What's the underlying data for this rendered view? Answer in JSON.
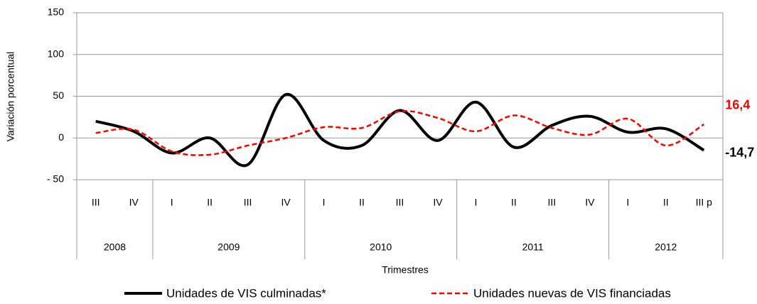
{
  "chart_data": {
    "type": "line",
    "y_label": "Variación  porcentual",
    "x_label": "Trimestres",
    "groups": [
      {
        "label": "2008",
        "categories": [
          "III",
          "IV"
        ]
      },
      {
        "label": "2009",
        "categories": [
          "I",
          "II",
          "III",
          "IV"
        ]
      },
      {
        "label": "2010",
        "categories": [
          "I",
          "II",
          "III",
          "IV"
        ]
      },
      {
        "label": "2011",
        "categories": [
          "I",
          "II",
          "III",
          "IV"
        ]
      },
      {
        "label": "2012",
        "categories": [
          "I",
          "II",
          "III p"
        ]
      }
    ],
    "series": [
      {
        "name": "Unidades de VIS culminadas*",
        "color": "#000000",
        "dash": false,
        "values": [
          20,
          8,
          -18,
          0,
          -32,
          52,
          -3,
          -9,
          33,
          -3,
          43,
          -11,
          15,
          26,
          7,
          11,
          -14.7
        ],
        "value_labels": [
          null,
          null,
          null,
          null,
          null,
          null,
          null,
          null,
          null,
          null,
          null,
          null,
          null,
          null,
          null,
          null,
          "-14,7"
        ]
      },
      {
        "name": "Unidades nuevas de VIS financiadas",
        "color": "#ff0000",
        "dash": true,
        "values": [
          6,
          10,
          -16,
          -20,
          -9,
          0,
          13,
          12,
          32,
          24,
          8,
          27,
          12,
          4,
          23,
          -9,
          16.4
        ],
        "value_labels": [
          null,
          null,
          null,
          null,
          null,
          null,
          null,
          null,
          null,
          null,
          null,
          null,
          null,
          null,
          null,
          null,
          "16,4"
        ]
      }
    ],
    "ylim": [
      -50,
      150
    ],
    "yticks": [
      {
        "value": -50,
        "label": "- 50"
      },
      0,
      50,
      100,
      150
    ],
    "grid": true
  }
}
